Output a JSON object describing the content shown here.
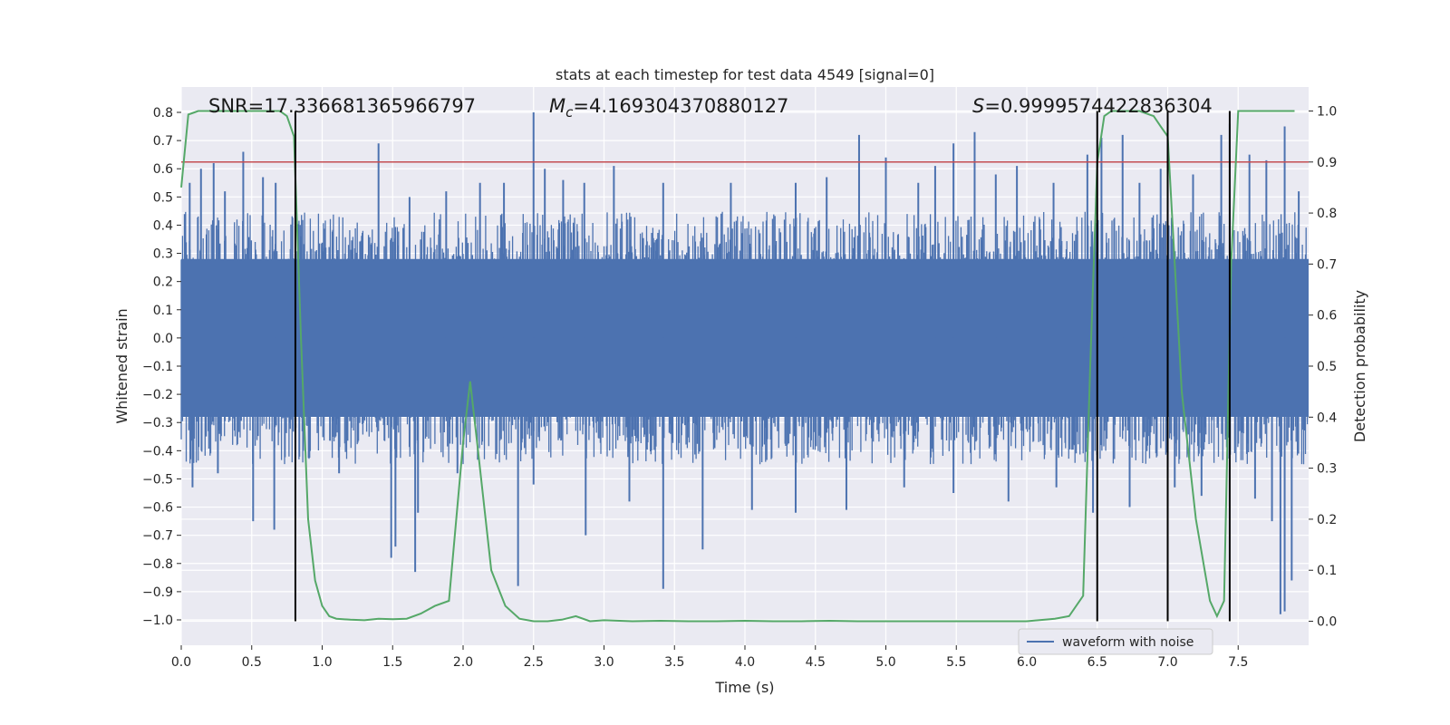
{
  "chart_data": {
    "type": "line",
    "title": "stats at each timestep for test data 4549 [signal=0]",
    "xlabel": "Time (s)",
    "ylabel": "Whitened strain",
    "y2label": "Detection probability",
    "xlim": [
      0.0,
      8.0
    ],
    "ylim": [
      -1.09,
      0.89
    ],
    "y2lim": [
      -0.047,
      1.047
    ],
    "xticks": [
      "0.0",
      "0.5",
      "1.0",
      "1.5",
      "2.0",
      "2.5",
      "3.0",
      "3.5",
      "4.0",
      "4.5",
      "5.0",
      "5.5",
      "6.0",
      "6.5",
      "7.0",
      "7.5"
    ],
    "yticks": [
      "0.8",
      "0.7",
      "0.6",
      "0.5",
      "0.4",
      "0.3",
      "0.2",
      "0.1",
      "0.0",
      "−0.1",
      "−0.2",
      "−0.3",
      "−0.4",
      "−0.5",
      "−0.6",
      "−0.7",
      "−0.8",
      "−0.9",
      "−1.0"
    ],
    "y2ticks": [
      "1.0",
      "0.9",
      "0.8",
      "0.7",
      "0.6",
      "0.5",
      "0.4",
      "0.3",
      "0.2",
      "0.1",
      "0.0"
    ],
    "annotations": {
      "snr": "SNR=17.336681365966797",
      "mc_symbol": "M",
      "mc_sub": "c",
      "mc_value": "=4.169304370880127",
      "s_symbol": "S",
      "s_value": "=0.9999574422836304"
    },
    "legend": {
      "label": "waveform with noise",
      "location": "lower right"
    },
    "threshold_probability": 0.9,
    "event_markers_s": [
      0.81,
      6.5,
      7.0,
      7.44
    ],
    "waveform": {
      "name": "waveform with noise",
      "color": "#4c72b0",
      "envelope_upper": 0.28,
      "envelope_lower": -0.28,
      "upward_spikes": [
        [
          0.06,
          0.55
        ],
        [
          0.14,
          0.6
        ],
        [
          0.23,
          0.62
        ],
        [
          0.31,
          0.52
        ],
        [
          0.44,
          0.66
        ],
        [
          0.58,
          0.57
        ],
        [
          0.67,
          0.55
        ],
        [
          1.4,
          0.69
        ],
        [
          1.62,
          0.5
        ],
        [
          1.88,
          0.52
        ],
        [
          2.12,
          0.55
        ],
        [
          2.29,
          0.55
        ],
        [
          2.5,
          0.8
        ],
        [
          2.58,
          0.6
        ],
        [
          2.71,
          0.56
        ],
        [
          2.86,
          0.55
        ],
        [
          3.07,
          0.61
        ],
        [
          3.42,
          0.55
        ],
        [
          3.9,
          0.55
        ],
        [
          4.36,
          0.55
        ],
        [
          4.58,
          0.57
        ],
        [
          4.81,
          0.72
        ],
        [
          5.0,
          0.64
        ],
        [
          5.23,
          0.55
        ],
        [
          5.35,
          0.61
        ],
        [
          5.48,
          0.69
        ],
        [
          5.63,
          0.73
        ],
        [
          5.78,
          0.58
        ],
        [
          5.93,
          0.61
        ],
        [
          6.19,
          0.55
        ],
        [
          6.43,
          0.65
        ],
        [
          6.53,
          0.71
        ],
        [
          6.68,
          0.72
        ],
        [
          6.8,
          0.55
        ],
        [
          6.95,
          0.6
        ],
        [
          7.18,
          0.58
        ],
        [
          7.38,
          0.72
        ],
        [
          7.44,
          0.76
        ],
        [
          7.58,
          0.65
        ],
        [
          7.7,
          0.63
        ],
        [
          7.83,
          0.75
        ],
        [
          7.93,
          0.52
        ]
      ],
      "downward_spikes": [
        [
          0.08,
          -0.53
        ],
        [
          0.26,
          -0.48
        ],
        [
          0.51,
          -0.65
        ],
        [
          0.66,
          -0.68
        ],
        [
          0.81,
          -0.63
        ],
        [
          1.12,
          -0.48
        ],
        [
          1.49,
          -0.78
        ],
        [
          1.52,
          -0.74
        ],
        [
          1.66,
          -0.83
        ],
        [
          1.68,
          -0.62
        ],
        [
          1.96,
          -0.48
        ],
        [
          2.39,
          -0.88
        ],
        [
          2.5,
          -0.52
        ],
        [
          2.87,
          -0.7
        ],
        [
          3.18,
          -0.58
        ],
        [
          3.42,
          -0.89
        ],
        [
          3.7,
          -0.75
        ],
        [
          4.05,
          -0.61
        ],
        [
          4.36,
          -0.62
        ],
        [
          4.72,
          -0.61
        ],
        [
          5.13,
          -0.53
        ],
        [
          5.48,
          -0.55
        ],
        [
          5.87,
          -0.58
        ],
        [
          6.21,
          -0.53
        ],
        [
          6.47,
          -0.62
        ],
        [
          6.73,
          -0.6
        ],
        [
          7.05,
          -0.53
        ],
        [
          7.24,
          -0.56
        ],
        [
          7.62,
          -0.57
        ],
        [
          7.74,
          -0.65
        ],
        [
          7.8,
          -0.98
        ],
        [
          7.83,
          -0.97
        ],
        [
          7.88,
          -0.86
        ]
      ]
    },
    "detection_probability": {
      "color": "#55a868",
      "x": [
        0.0,
        0.05,
        0.12,
        0.2,
        0.3,
        0.4,
        0.5,
        0.6,
        0.7,
        0.75,
        0.8,
        0.85,
        0.9,
        0.95,
        1.0,
        1.05,
        1.1,
        1.2,
        1.3,
        1.4,
        1.5,
        1.6,
        1.7,
        1.8,
        1.9,
        2.0,
        2.05,
        2.1,
        2.2,
        2.3,
        2.4,
        2.5,
        2.6,
        2.7,
        2.8,
        2.9,
        3.0,
        3.2,
        3.4,
        3.6,
        3.8,
        4.0,
        4.2,
        4.4,
        4.6,
        4.8,
        5.0,
        5.2,
        5.4,
        5.6,
        5.8,
        6.0,
        6.2,
        6.3,
        6.4,
        6.45,
        6.5,
        6.55,
        6.6,
        6.7,
        6.8,
        6.9,
        6.95,
        7.0,
        7.05,
        7.1,
        7.2,
        7.3,
        7.35,
        7.4,
        7.45,
        7.5,
        7.6,
        7.7,
        7.8,
        7.9
      ],
      "y": [
        0.85,
        0.993,
        1.0,
        1.0,
        1.0,
        1.0,
        1.0,
        1.0,
        1.0,
        0.99,
        0.95,
        0.55,
        0.2,
        0.08,
        0.03,
        0.01,
        0.005,
        0.003,
        0.002,
        0.005,
        0.004,
        0.005,
        0.015,
        0.03,
        0.04,
        0.35,
        0.47,
        0.35,
        0.1,
        0.03,
        0.005,
        0.0,
        0.0,
        0.003,
        0.01,
        0.0,
        0.002,
        0.0,
        0.001,
        0.0,
        0.0,
        0.001,
        0.0,
        0.0,
        0.001,
        0.0,
        0.0,
        0.0,
        0.0,
        0.0,
        0.0,
        0.0,
        0.005,
        0.01,
        0.05,
        0.5,
        0.9,
        0.99,
        1.0,
        1.0,
        1.0,
        0.99,
        0.97,
        0.95,
        0.7,
        0.45,
        0.2,
        0.04,
        0.01,
        0.04,
        0.7,
        1.0,
        1.0,
        1.0,
        1.0,
        1.0
      ]
    },
    "colors": {
      "axes_bg": "#eaeaf2",
      "grid": "#ffffff",
      "threshold": "#c44e52",
      "markers": "#000000",
      "text": "#262626"
    }
  }
}
